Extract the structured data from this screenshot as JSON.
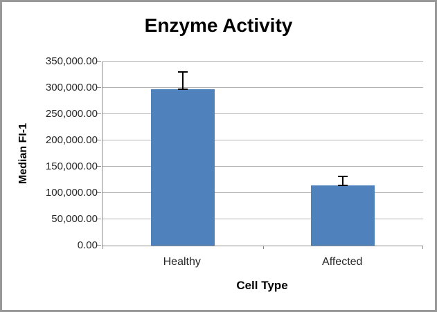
{
  "window": {
    "background_color": "#ffffff",
    "frame_border_color": "#989898"
  },
  "chart_data": {
    "type": "bar",
    "title": "Enzyme Activity",
    "xlabel": "Cell Type",
    "ylabel": "Median FI-1",
    "categories": [
      "Healthy",
      "Affected"
    ],
    "values": [
      297000,
      115000
    ],
    "errors_plus": [
      33000,
      17000
    ],
    "error_direction": "plus",
    "ylim": [
      0,
      350000
    ],
    "ytick_step": 50000,
    "ytick_labels": [
      "0.00",
      "50,000.00",
      "100,000.00",
      "150,000.00",
      "200,000.00",
      "250,000.00",
      "300,000.00",
      "350,000.00"
    ],
    "grid": true,
    "legend": false,
    "bar_color": "#4f81bd",
    "gridline_color": "#b3b3b3",
    "axis_color": "#8a8a8a",
    "error_bar_color": "#000000",
    "text_color": "#262626",
    "title_color": "#000000"
  }
}
